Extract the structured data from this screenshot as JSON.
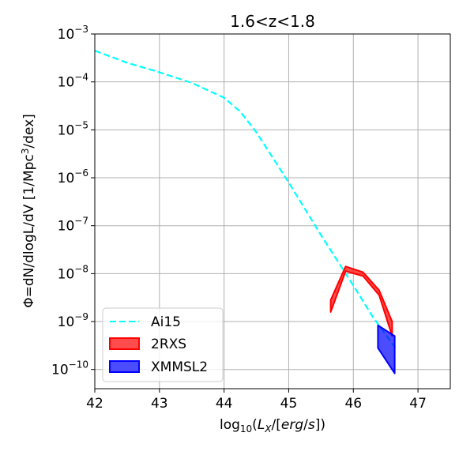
{
  "chart_data": {
    "type": "line",
    "title": "1.6<z<1.8",
    "xlabel": "log10(LX/[erg/s])",
    "ylabel": "Φ=dN/dlogL/dV [1/Mpc³/dex]",
    "xlim": [
      42,
      47.5
    ],
    "ylim_log10": [
      -10.4,
      -3
    ],
    "yscale": "log",
    "grid": true,
    "legend_position": "lower-left",
    "x_ticks": [
      "42",
      "43",
      "44",
      "45",
      "46",
      "47"
    ],
    "y_ticks": [
      {
        "base": "10",
        "exp": "−3",
        "log": -3
      },
      {
        "base": "10",
        "exp": "−4",
        "log": -4
      },
      {
        "base": "10",
        "exp": "−5",
        "log": -5
      },
      {
        "base": "10",
        "exp": "−6",
        "log": -6
      },
      {
        "base": "10",
        "exp": "−7",
        "log": -7
      },
      {
        "base": "10",
        "exp": "−8",
        "log": -8
      },
      {
        "base": "10",
        "exp": "−9",
        "log": -9
      },
      {
        "base": "10",
        "exp": "−10",
        "log": -10
      }
    ],
    "series": [
      {
        "name": "Ai15",
        "kind": "dashed-line",
        "color": "#00ffff",
        "points": [
          [
            42.0,
            -3.35
          ],
          [
            42.5,
            -3.6
          ],
          [
            43.0,
            -3.8
          ],
          [
            43.5,
            -4.02
          ],
          [
            44.0,
            -4.33
          ],
          [
            44.25,
            -4.62
          ],
          [
            44.5,
            -5.05
          ],
          [
            45.0,
            -6.1
          ],
          [
            45.5,
            -7.2
          ],
          [
            46.0,
            -8.25
          ],
          [
            46.3,
            -8.9
          ],
          [
            46.65,
            -9.55
          ]
        ]
      },
      {
        "name": "2RXS",
        "kind": "band",
        "color": "#ff0000",
        "upper": [
          [
            45.65,
            -8.55
          ],
          [
            45.88,
            -7.85
          ],
          [
            46.15,
            -7.97
          ],
          [
            46.4,
            -8.35
          ],
          [
            46.6,
            -9.0
          ]
        ],
        "lower": [
          [
            45.65,
            -8.8
          ],
          [
            45.88,
            -7.95
          ],
          [
            46.15,
            -8.05
          ],
          [
            46.4,
            -8.45
          ],
          [
            46.6,
            -9.3
          ]
        ]
      },
      {
        "name": "XMMSL2",
        "kind": "band",
        "color": "#0000ff",
        "upper": [
          [
            46.38,
            -9.08
          ],
          [
            46.64,
            -9.3
          ]
        ],
        "lower": [
          [
            46.38,
            -9.55
          ],
          [
            46.64,
            -10.08
          ]
        ]
      }
    ]
  },
  "legend": {
    "items": [
      {
        "label": "Ai15"
      },
      {
        "label": "2RXS"
      },
      {
        "label": "XMMSL2"
      }
    ]
  }
}
